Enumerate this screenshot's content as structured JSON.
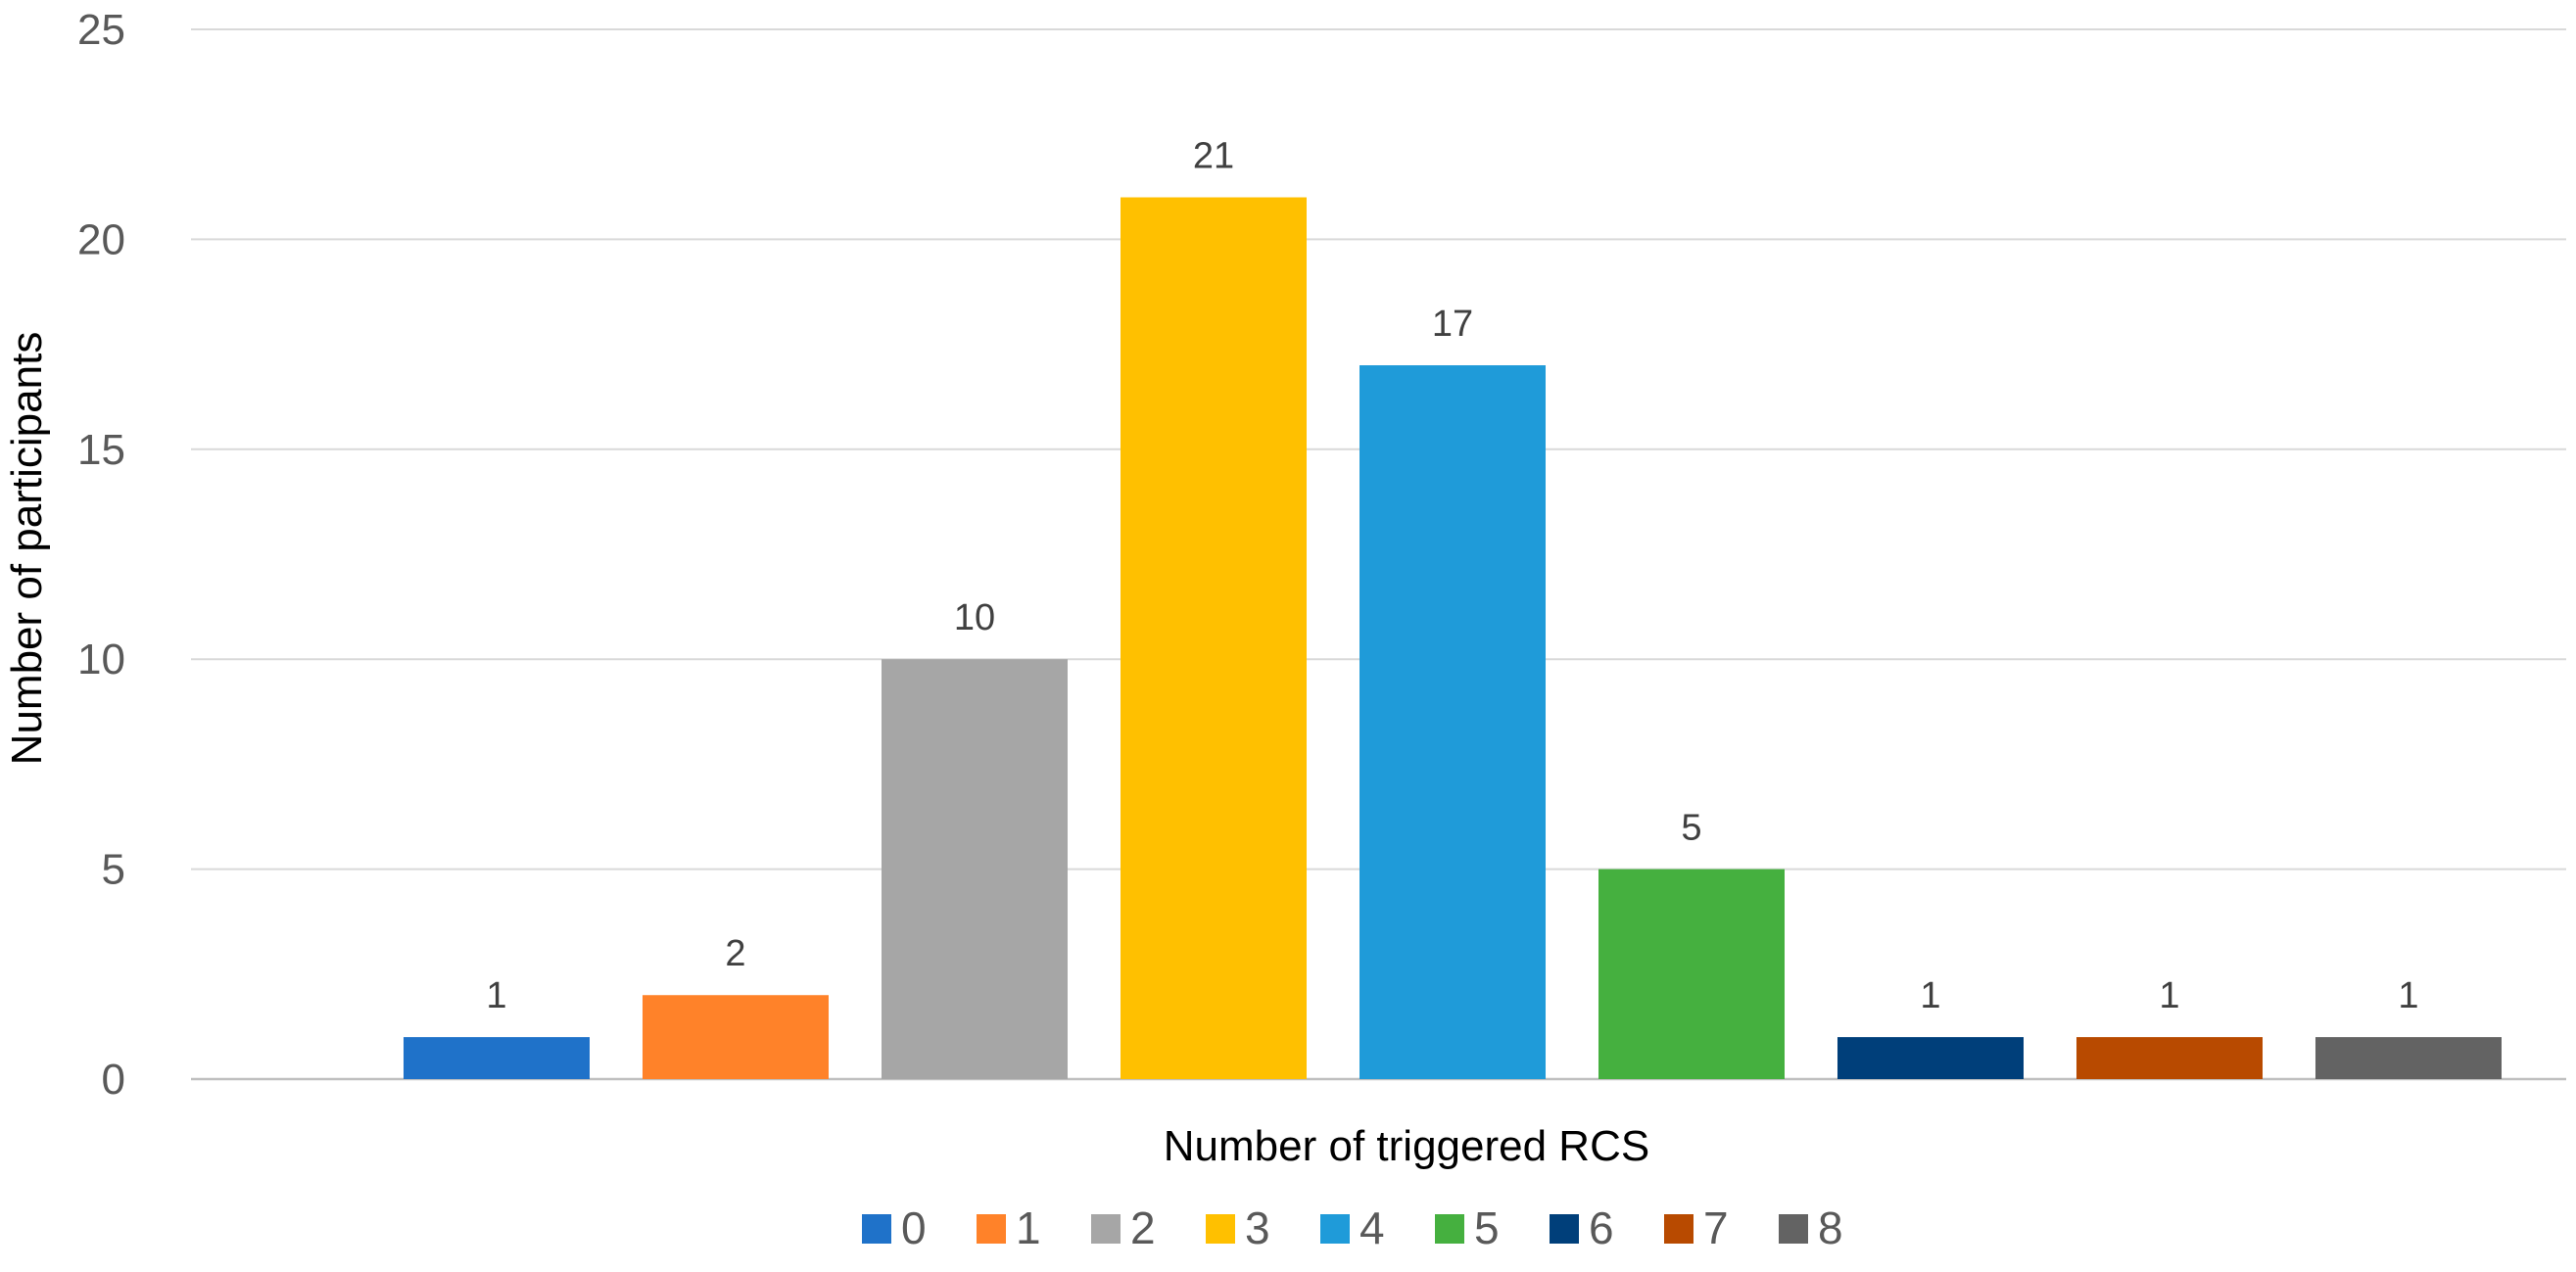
{
  "chart_data": {
    "type": "bar",
    "xlabel": "Number of triggered RCS",
    "ylabel": "Number of participants",
    "ylim": [
      0,
      25
    ],
    "yticks": [
      0,
      5,
      10,
      15,
      20,
      25
    ],
    "grid": true,
    "legend_position": "bottom",
    "series": [
      {
        "name": "0",
        "value": 1,
        "color": "#1F72C9"
      },
      {
        "name": "1",
        "value": 2,
        "color": "#FF8229"
      },
      {
        "name": "2",
        "value": 10,
        "color": "#A6A6A6"
      },
      {
        "name": "3",
        "value": 21,
        "color": "#FFC000"
      },
      {
        "name": "4",
        "value": 17,
        "color": "#1F9BD9"
      },
      {
        "name": "5",
        "value": 5,
        "color": "#45B03F"
      },
      {
        "name": "6",
        "value": 1,
        "color": "#003F7A"
      },
      {
        "name": "7",
        "value": 1,
        "color": "#B84A00"
      },
      {
        "name": "8",
        "value": 1,
        "color": "#636363"
      }
    ]
  }
}
